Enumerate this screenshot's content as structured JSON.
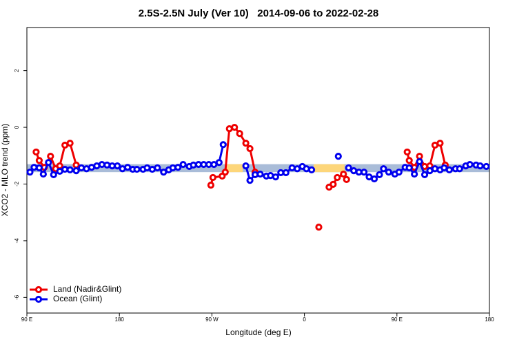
{
  "chart_data": {
    "type": "line",
    "title": "2.5S-2.5N July (Ver 10)   2014-09-06 to 2022-02-28",
    "x_label": "Longitude (deg E)",
    "y_label": "XCO2 - MLO trend (ppm)",
    "xlim": [
      90,
      540
    ],
    "ylim": [
      -6.55,
      3.52
    ],
    "xticks": [
      {
        "value": 90,
        "label": "90 E"
      },
      180,
      {
        "value": 270,
        "label": "90 W"
      },
      {
        "value": 360,
        "label": "0"
      },
      {
        "value": 450,
        "label": "90 E"
      },
      {
        "value": 540,
        "label": "180"
      }
    ],
    "yticks": [
      -6,
      -4,
      -2,
      0,
      2
    ],
    "bands": [
      {
        "xlim": [
          90,
          540
        ],
        "ylim": [
          -1.3,
          -1.58
        ],
        "color": "#a9bcd8"
      },
      {
        "xlim": [
          283,
          300
        ],
        "ylim": [
          -1.3,
          -1.58
        ],
        "color": "#fdd67a"
      },
      {
        "xlim": [
          369,
          399
        ],
        "ylim": [
          -1.3,
          -1.58
        ],
        "color": "#fdd67a"
      }
    ],
    "legend": "bottom-left",
    "series": [
      {
        "name": "Land (Nadir&Glint)",
        "color": "#ee0000",
        "x": [
          99,
          102,
          107,
          113,
          118,
          122,
          127,
          132,
          138,
          null,
          269,
          271,
          280,
          283,
          287,
          292,
          297,
          303,
          307,
          312,
          null,
          374,
          null,
          384,
          388,
          392,
          398,
          401,
          null,
          460,
          462,
          467,
          472,
          477,
          482,
          487,
          492,
          497
        ],
        "values": [
          -0.87,
          -1.17,
          -1.41,
          -1.02,
          -1.46,
          -1.36,
          -0.63,
          -0.56,
          -1.33,
          null,
          -2.04,
          -1.77,
          -1.72,
          -1.58,
          -0.05,
          0,
          -0.22,
          -0.56,
          -0.75,
          -1.58,
          null,
          -3.52,
          null,
          -2.11,
          -2.01,
          -1.77,
          -1.65,
          -1.84,
          null,
          -0.87,
          -1.17,
          -1.41,
          -1.02,
          -1.38,
          -1.36,
          -0.63,
          -0.56,
          -1.33
        ]
      },
      {
        "name": "Ocean (Glint)",
        "color": "#0000ee",
        "x": [
          93,
          97,
          102,
          106,
          111,
          116,
          122,
          127,
          132,
          138,
          143,
          148,
          153,
          158,
          163,
          168,
          173,
          178,
          183,
          188,
          193,
          197,
          203,
          207,
          212,
          217,
          223,
          228,
          232,
          237,
          242,
          248,
          252,
          257,
          262,
          267,
          272,
          277,
          281,
          null,
          303,
          307,
          312,
          317,
          323,
          327,
          332,
          337,
          342,
          348,
          353,
          358,
          362,
          367,
          null,
          393,
          null,
          403,
          408,
          413,
          418,
          423,
          428,
          433,
          437,
          442,
          448,
          452,
          458,
          462,
          467,
          472,
          477,
          482,
          487,
          492,
          496,
          501,
          507,
          511,
          517,
          521,
          527,
          531,
          537
        ],
        "values": [
          -1.58,
          -1.41,
          -1.43,
          -1.65,
          -1.24,
          -1.67,
          -1.55,
          -1.48,
          -1.5,
          -1.53,
          -1.43,
          -1.46,
          -1.41,
          -1.36,
          -1.31,
          -1.33,
          -1.36,
          -1.36,
          -1.46,
          -1.41,
          -1.48,
          -1.48,
          -1.48,
          -1.43,
          -1.48,
          -1.43,
          -1.58,
          -1.5,
          -1.43,
          -1.41,
          -1.31,
          -1.38,
          -1.33,
          -1.31,
          -1.31,
          -1.31,
          -1.31,
          -1.24,
          -0.61,
          null,
          -1.36,
          -1.87,
          -1.67,
          -1.65,
          -1.72,
          -1.7,
          -1.75,
          -1.6,
          -1.6,
          -1.43,
          -1.46,
          -1.38,
          -1.46,
          -1.5,
          null,
          -1.02,
          null,
          -1.43,
          -1.53,
          -1.58,
          -1.58,
          -1.75,
          -1.82,
          -1.67,
          -1.46,
          -1.58,
          -1.65,
          -1.58,
          -1.41,
          -1.43,
          -1.65,
          -1.21,
          -1.67,
          -1.53,
          -1.46,
          -1.5,
          -1.43,
          -1.5,
          -1.46,
          -1.46,
          -1.36,
          -1.31,
          -1.33,
          -1.36,
          -1.38
        ]
      }
    ]
  }
}
